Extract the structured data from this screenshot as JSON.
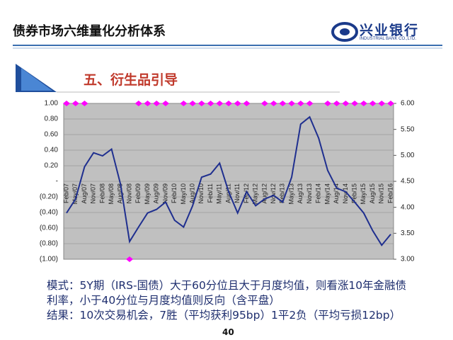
{
  "header": {
    "title": "债券市场六维量化分析体系",
    "logo_name": "兴业银行",
    "logo_english": "INDUSTRIAL BANK CO.,LTD."
  },
  "section_title": "五、衍生品引导",
  "chart_data": {
    "type": "line",
    "categories": [
      "Feb/07",
      "May/07",
      "Aug/07",
      "Nov/07",
      "Feb/08",
      "May/08",
      "Aug/08",
      "Nov/08",
      "Feb/09",
      "May/09",
      "Aug/09",
      "Nov/09",
      "Feb/10",
      "May/10",
      "Aug/10",
      "Nov/10",
      "Feb/11",
      "May/11",
      "Aug/11",
      "Nov/11",
      "Feb/12",
      "May/12",
      "Aug/12",
      "Nov/12",
      "Feb/13",
      "May/13",
      "Aug/13",
      "Nov/13",
      "Feb/14",
      "May/14",
      "Aug/14",
      "Nov/14",
      "Feb/15",
      "May/15",
      "Aug/15",
      "Nov/15",
      "Feb/16"
    ],
    "series": [
      {
        "color": "#1f2f8f",
        "axis": "y2",
        "values": [
          3.89,
          4.16,
          4.78,
          5.05,
          4.99,
          5.12,
          4.44,
          3.34,
          3.62,
          3.89,
          3.96,
          4.1,
          3.75,
          3.62,
          4.03,
          4.58,
          4.64,
          4.85,
          4.3,
          3.89,
          4.3,
          4.03,
          4.16,
          4.23,
          4.1,
          4.58,
          5.6,
          5.74,
          5.33,
          4.71,
          4.37,
          4.3,
          4.1,
          3.89,
          3.55,
          3.27,
          3.48
        ]
      },
      {
        "color": "#ff00ff",
        "values": [
          1,
          1,
          1,
          null,
          null,
          null,
          null,
          -1,
          1,
          1,
          1,
          1,
          null,
          1,
          1,
          1,
          1,
          1,
          1,
          1,
          1,
          null,
          1,
          1,
          1,
          1,
          1,
          1,
          null,
          1,
          1,
          1,
          1,
          1,
          1,
          1,
          1
        ]
      }
    ],
    "ylim": [
      -1,
      1
    ],
    "yticks": [
      {
        "value": 1,
        "label": "1.00"
      },
      {
        "value": 0.8,
        "label": "0.80"
      },
      {
        "value": 0.6,
        "label": "0.60"
      },
      {
        "value": 0.4,
        "label": "0.40"
      },
      {
        "value": 0.2,
        "label": "0.20"
      },
      {
        "value": 0,
        "label": "-"
      },
      {
        "value": -0.2,
        "label": "(0.20)"
      },
      {
        "value": -0.4,
        "label": "(0.40)"
      },
      {
        "value": -0.6,
        "label": "(0.60)"
      },
      {
        "value": -0.8,
        "label": "(0.80)"
      },
      {
        "value": -1,
        "label": "(1.00)"
      }
    ],
    "y2lim": [
      3,
      6
    ],
    "y2ticks": [
      {
        "value": 6,
        "label": "6.00"
      },
      {
        "value": 5.5,
        "label": "5.50"
      },
      {
        "value": 5,
        "label": "5.00"
      },
      {
        "value": 4.5,
        "label": "4.50"
      },
      {
        "value": 4,
        "label": "4.00"
      },
      {
        "value": 3.5,
        "label": "3.50"
      },
      {
        "value": 3,
        "label": "3.00"
      }
    ],
    "grid": true,
    "background": "#c0c0c0"
  },
  "body": [
    "模式：5Y期（IRS-国债）大于60分位且大于月度均值，则看涨10年金融债利率，小于40分位与月度均值则反向（含平盘）",
    "结果：10次交易机会，7胜（平均获利95bp）1平2负（平均亏损12bp）"
  ],
  "page_number": "40"
}
